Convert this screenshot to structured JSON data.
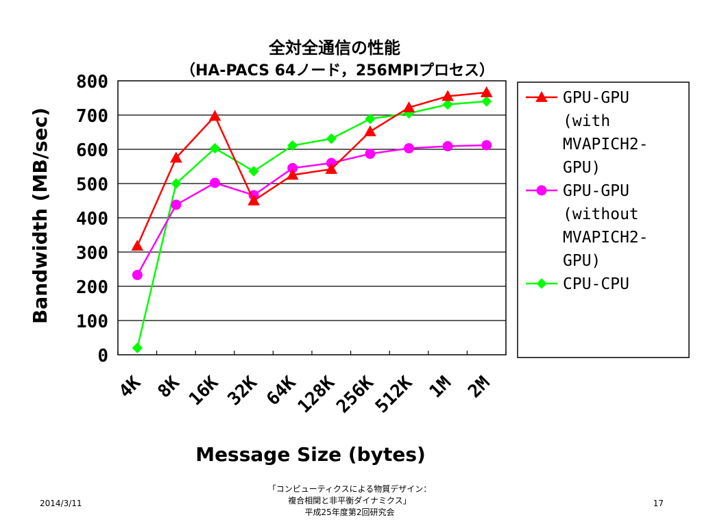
{
  "chart_data": {
    "type": "line",
    "title": "全対全通信の性能",
    "subtitle": "（HA-PACS 64ノード，256MPIプロセス）",
    "xlabel": "Message Size (bytes)",
    "ylabel": "Bandwidth (MB/sec)",
    "categories": [
      "4K",
      "8K",
      "16K",
      "32K",
      "64K",
      "128K",
      "256K",
      "512K",
      "1M",
      "2M"
    ],
    "ylim": [
      0,
      800
    ],
    "yticks": [
      0,
      100,
      200,
      300,
      400,
      500,
      600,
      700,
      800
    ],
    "grid": "horizontal",
    "legend_position": "right",
    "series": [
      {
        "name_lines": [
          "GPU-GPU",
          "(with",
          "MVAPICH2-",
          "GPU)"
        ],
        "color": "#ff0000",
        "marker": "triangle",
        "values": [
          318,
          575,
          697,
          450,
          525,
          542,
          652,
          722,
          755,
          766
        ]
      },
      {
        "name_lines": [
          "GPU-GPU",
          "(without",
          "MVAPICH2-",
          "GPU)"
        ],
        "color": "#ff00ff",
        "marker": "circle",
        "values": [
          233,
          438,
          502,
          466,
          545,
          560,
          587,
          603,
          609,
          612
        ]
      },
      {
        "name_lines": [
          "CPU-CPU"
        ],
        "color": "#00ff00",
        "marker": "diamond",
        "values": [
          20,
          500,
          603,
          536,
          611,
          631,
          689,
          705,
          731,
          740
        ]
      }
    ]
  },
  "footer": {
    "date": "2014/3/11",
    "center_lines": [
      "「コンピューティクスによる物質デザイン：",
      "複合相関と非平衡ダイナミクス」",
      "平成25年度第2回研究会"
    ],
    "page": "17"
  }
}
